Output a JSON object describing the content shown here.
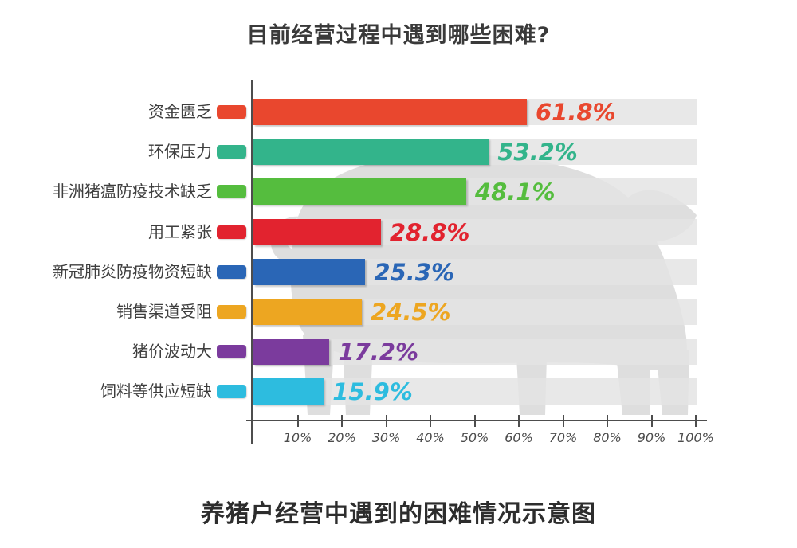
{
  "chart_data": {
    "type": "bar",
    "orientation": "horizontal",
    "title": "目前经营过程中遇到哪些困难?",
    "caption": "养猪户经营中遇到的困难情况示意图",
    "categories": [
      "资金匮乏",
      "环保压力",
      "非洲猪瘟防疫技术缺乏",
      "用工紧张",
      "新冠肺炎防疫物资短缺",
      "销售渠道受阻",
      "猪价波动大",
      "饲料等供应短缺"
    ],
    "values": [
      61.8,
      53.2,
      48.1,
      28.8,
      25.3,
      24.5,
      17.2,
      15.9
    ],
    "value_labels": [
      "61.8%",
      "53.2%",
      "48.1%",
      "28.8%",
      "25.3%",
      "24.5%",
      "17.2%",
      "15.9%"
    ],
    "bar_colors": [
      "#e9472e",
      "#33b48b",
      "#55bd3e",
      "#e2232f",
      "#2a66b6",
      "#eda621",
      "#7b3b9d",
      "#2dbcdf"
    ],
    "x_tick_labels": [
      "10%",
      "20%",
      "30%",
      "40%",
      "50%",
      "60%",
      "70%",
      "80%",
      "90%",
      "100%"
    ],
    "xlim": [
      0,
      100
    ],
    "grid": false,
    "legend": "none",
    "track_color": "#e8e8e8",
    "watermark": "pig-silhouette",
    "watermark_color": "#dedede",
    "axis_color": "#4d4d4d"
  }
}
